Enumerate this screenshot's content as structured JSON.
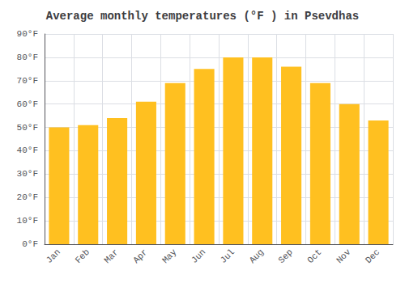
{
  "chart_data": {
    "type": "bar",
    "title": "Average monthly temperatures (°F ) in Psevdhas",
    "categories": [
      "Jan",
      "Feb",
      "Mar",
      "Apr",
      "May",
      "Jun",
      "Jul",
      "Aug",
      "Sep",
      "Oct",
      "Nov",
      "Dec"
    ],
    "values": [
      50,
      51,
      54,
      61,
      69,
      75,
      80,
      80,
      76,
      69,
      60,
      53
    ],
    "color": "#FFC020",
    "ylim": [
      0,
      90
    ],
    "yticks": [
      {
        "value": 0,
        "label": "0°F"
      },
      {
        "value": 10,
        "label": "10°F"
      },
      {
        "value": 20,
        "label": "20°F"
      },
      {
        "value": 30,
        "label": "30°F"
      },
      {
        "value": 40,
        "label": "40°F"
      },
      {
        "value": 50,
        "label": "50°F"
      },
      {
        "value": 60,
        "label": "60°F"
      },
      {
        "value": 70,
        "label": "70°F"
      },
      {
        "value": 80,
        "label": "80°F"
      },
      {
        "value": 90,
        "label": "90°F"
      }
    ],
    "grid": true
  }
}
